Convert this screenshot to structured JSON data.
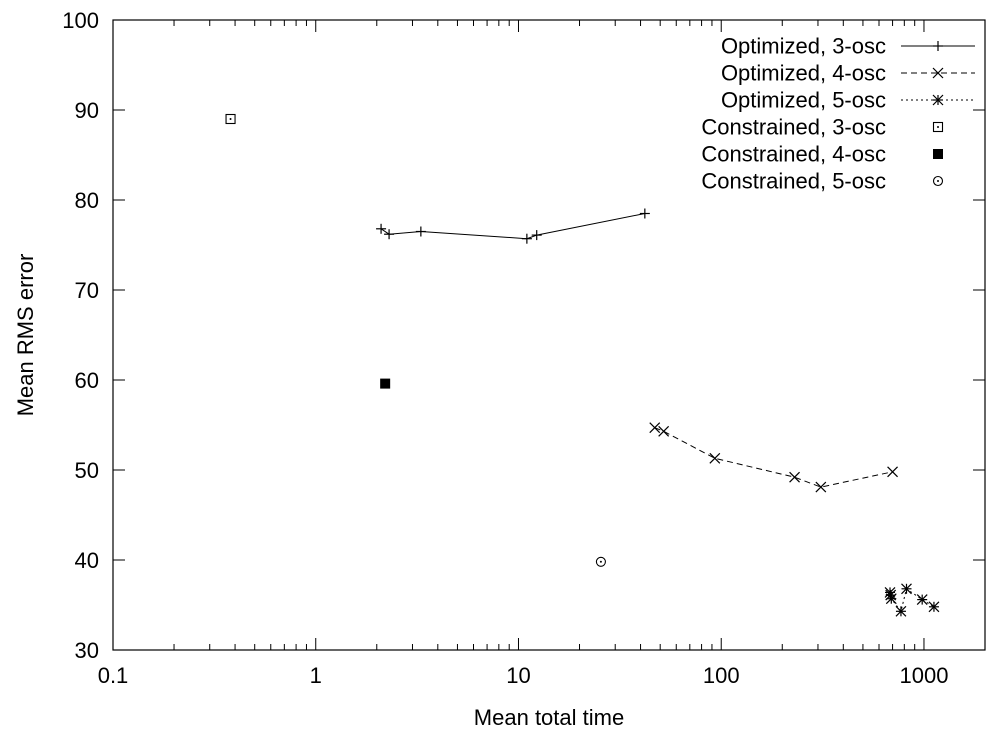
{
  "chart_data": {
    "type": "scatter",
    "title": "",
    "xlabel": "Mean total time",
    "ylabel": "Mean RMS error",
    "xscale": "log",
    "xlim": [
      0.1,
      2000
    ],
    "ylim": [
      30,
      100
    ],
    "xticks": [
      0.1,
      1,
      10,
      100,
      1000
    ],
    "xtick_labels": [
      "0.1",
      "1",
      "10",
      "100",
      "1000"
    ],
    "yticks": [
      30,
      40,
      50,
      60,
      70,
      80,
      90,
      100
    ],
    "ytick_labels": [
      "30",
      "40",
      "50",
      "60",
      "70",
      "80",
      "90",
      "100"
    ],
    "grid": false,
    "legend_position": "top-right",
    "series": [
      {
        "name": "Optimized, 3-osc",
        "marker": "plus",
        "line": "solid",
        "points": [
          [
            2.1,
            76.8
          ],
          [
            2.3,
            76.2
          ],
          [
            3.3,
            76.5
          ],
          [
            11,
            75.7
          ],
          [
            12.3,
            76.1
          ],
          [
            42,
            78.5
          ]
        ]
      },
      {
        "name": "Optimized, 4-osc",
        "marker": "cross",
        "line": "dashed",
        "points": [
          [
            47,
            54.7
          ],
          [
            52,
            54.3
          ],
          [
            93,
            51.3
          ],
          [
            230,
            49.2
          ],
          [
            310,
            48.1
          ],
          [
            700,
            49.8
          ]
        ]
      },
      {
        "name": "Optimized, 5-osc",
        "marker": "star",
        "line": "dotted",
        "points": [
          [
            680,
            36.4
          ],
          [
            685,
            36.1
          ],
          [
            690,
            35.7
          ],
          [
            770,
            34.3
          ],
          [
            820,
            36.8
          ],
          [
            980,
            35.6
          ],
          [
            1120,
            34.8
          ]
        ]
      },
      {
        "name": "Constrained, 3-osc",
        "marker": "box-dot",
        "line": "none",
        "points": [
          [
            0.38,
            89.0
          ]
        ]
      },
      {
        "name": "Constrained, 4-osc",
        "marker": "filled-square",
        "line": "none",
        "points": [
          [
            2.2,
            59.6
          ]
        ]
      },
      {
        "name": "Constrained, 5-osc",
        "marker": "circle-dot",
        "line": "none",
        "points": [
          [
            25.5,
            39.8
          ]
        ]
      }
    ]
  }
}
